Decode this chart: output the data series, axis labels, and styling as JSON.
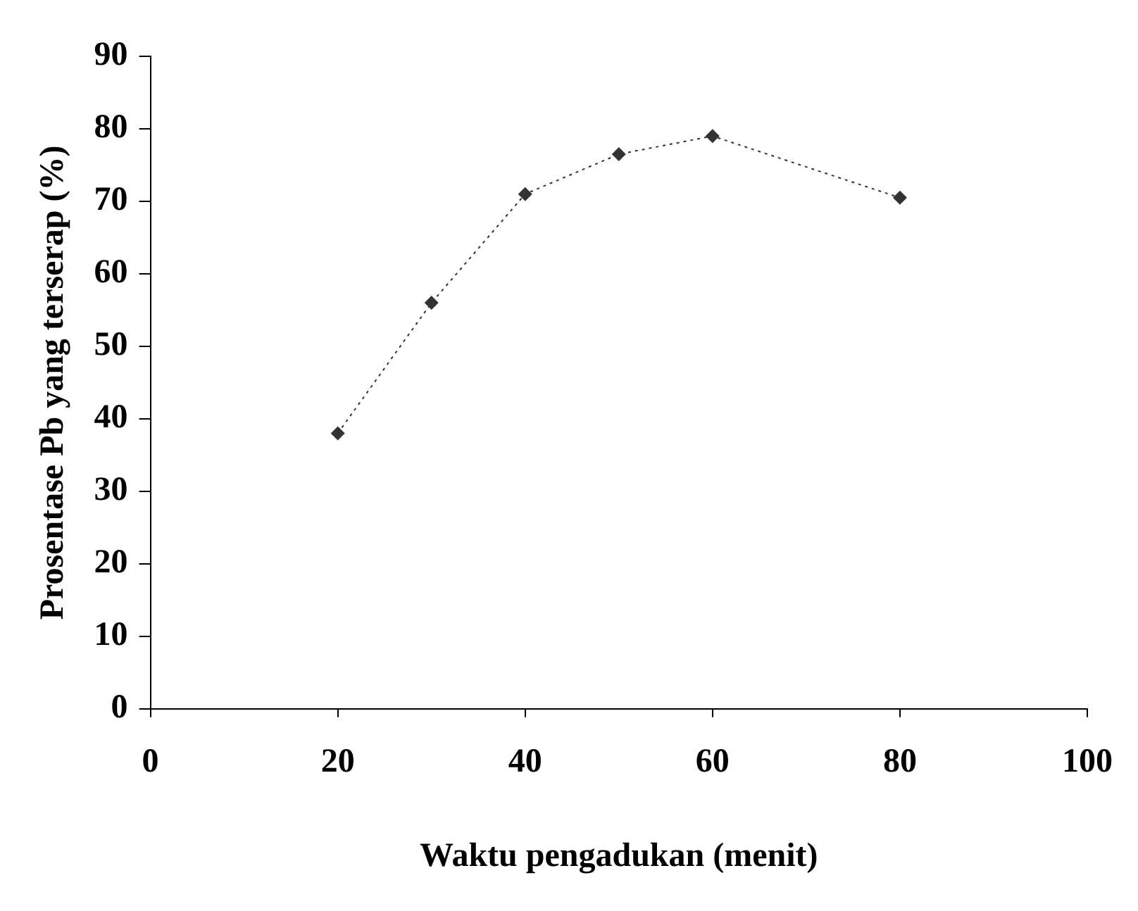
{
  "chart_data": {
    "type": "line",
    "xlabel": "Waktu pengadukan (menit)",
    "ylabel": "Prosentase Pb yang terserap (%)",
    "x": [
      20,
      30,
      40,
      50,
      60,
      80
    ],
    "series": [
      {
        "color": "#333333",
        "values": [
          38,
          56,
          71,
          76.5,
          79,
          70.5
        ]
      }
    ],
    "xlim": [
      0,
      100
    ],
    "xticks": [
      0,
      20,
      40,
      60,
      80,
      100
    ],
    "ylim": [
      0,
      90
    ],
    "yticks": [
      0,
      10,
      20,
      30,
      40,
      50,
      60,
      70,
      80,
      90
    ],
    "grid": false,
    "legend": false,
    "marker": "diamond",
    "line_style": "dotted"
  }
}
